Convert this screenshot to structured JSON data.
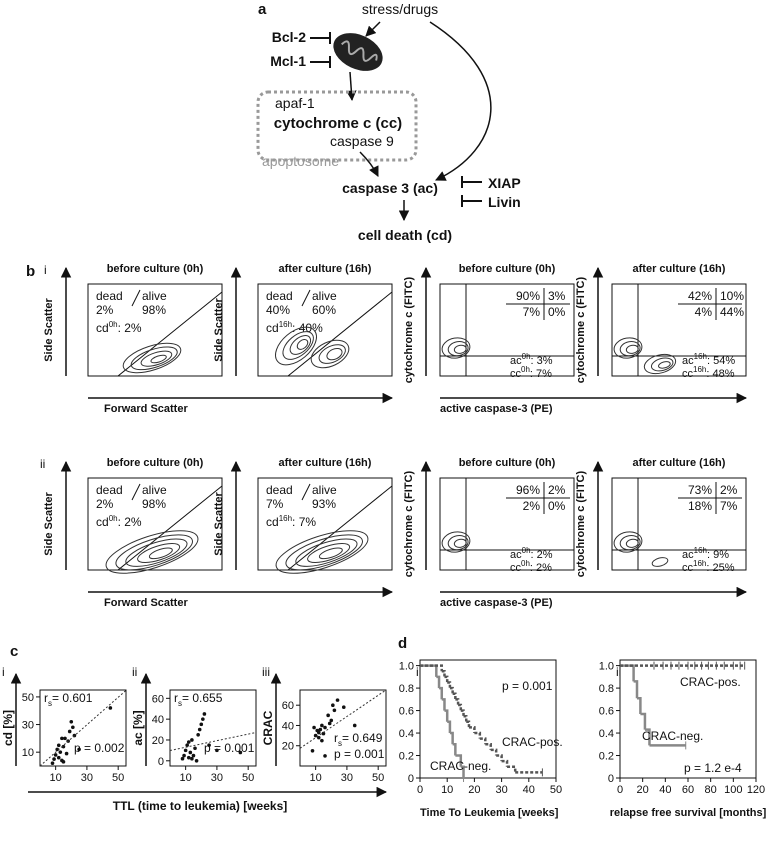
{
  "panel_a": {
    "label": "a",
    "stress": "stress/drugs",
    "bcl2": "Bcl-2",
    "mcl1": "Mcl-1",
    "apaf1": "apaf-1",
    "cytochrome": "cytochrome c (cc)",
    "caspase9": "caspase 9",
    "apoptosome": "apoptosome",
    "caspase3": "caspase 3 (ac)",
    "xiap": "XIAP",
    "livin": "Livin",
    "cell_death": "cell death (cd)"
  },
  "panel_b": {
    "label": "b",
    "dead": "dead",
    "alive": "alive",
    "x_label_scatter": "Forward Scatter",
    "y_label_scatter": "Side Scatter",
    "x_label_fitc": "active caspase-3 (PE)",
    "y_label_fitc": "cytochrome c (FITC)",
    "rows": [
      {
        "label": "i",
        "scatter": [
          {
            "title": "before culture (0h)",
            "dead_pct": "2%",
            "alive_pct": "98%",
            "cd": {
              "base": "cd",
              "sup": "0h",
              "rest": ": 2%"
            }
          },
          {
            "title": "after culture (16h)",
            "dead_pct": "40%",
            "alive_pct": "60%",
            "cd": {
              "base": "cd",
              "sup": "16h",
              "rest": ": 40%"
            }
          }
        ],
        "quad": [
          {
            "title": "before culture (0h)",
            "q": [
              "90%",
              "3%",
              "7%",
              "0%"
            ],
            "ac": {
              "base": "ac",
              "sup": "0h",
              "rest": ": 3%"
            },
            "cc": {
              "base": "cc",
              "sup": "0h",
              "rest": ": 7%"
            }
          },
          {
            "title": "after culture (16h)",
            "q": [
              "42%",
              "10%",
              "4%",
              "44%"
            ],
            "ac": {
              "base": "ac",
              "sup": "16h",
              "rest": ": 54%"
            },
            "cc": {
              "base": "cc",
              "sup": "16h",
              "rest": ": 48%"
            }
          }
        ]
      },
      {
        "label": "ii",
        "scatter": [
          {
            "title": "before culture (0h)",
            "dead_pct": "2%",
            "alive_pct": "98%",
            "cd": {
              "base": "cd",
              "sup": "0h",
              "rest": ": 2%"
            }
          },
          {
            "title": "after culture (16h)",
            "dead_pct": "7%",
            "alive_pct": "93%",
            "cd": {
              "base": "cd",
              "sup": "16h",
              "rest": ": 7%"
            }
          }
        ],
        "quad": [
          {
            "title": "before culture (0h)",
            "q": [
              "96%",
              "2%",
              "2%",
              "0%"
            ],
            "ac": {
              "base": "ac",
              "sup": "0h",
              "rest": ": 2%"
            },
            "cc": {
              "base": "cc",
              "sup": "0h",
              "rest": ": 2%"
            }
          },
          {
            "title": "after culture (16h)",
            "q": [
              "73%",
              "2%",
              "18%",
              "7%"
            ],
            "ac": {
              "base": "ac",
              "sup": "16h",
              "rest": ": 9%"
            },
            "cc": {
              "base": "cc",
              "sup": "16h",
              "rest": ": 25%"
            }
          }
        ]
      }
    ]
  },
  "panel_c": {
    "label": "c",
    "x_label": "TTL (time to leukemia) [weeks]",
    "plots": [
      {
        "label": "i",
        "type": "scatter",
        "y_label": "cd [%]",
        "xlim": [
          0,
          55
        ],
        "xticks": [
          10,
          30,
          50
        ],
        "ylim": [
          0,
          55
        ],
        "yticks": [
          10,
          30,
          50
        ],
        "rs": {
          "base": "r",
          "sub": "s",
          "rest": "= 0.601"
        },
        "p": "p = 0.002",
        "x": [
          8,
          9,
          10,
          11,
          12,
          13,
          14,
          15,
          15,
          16,
          18,
          19,
          20,
          21,
          22,
          25,
          45,
          12,
          17,
          14
        ],
        "y": [
          2,
          5,
          8,
          12,
          6,
          10,
          4,
          14,
          3,
          20,
          18,
          25,
          32,
          28,
          22,
          12,
          42,
          15,
          9,
          20
        ]
      },
      {
        "label": "ii",
        "type": "scatter",
        "y_label": "ac [%]",
        "xlim": [
          0,
          55
        ],
        "xticks": [
          10,
          30,
          50
        ],
        "ylim": [
          -5,
          68
        ],
        "yticks": [
          0,
          20,
          40,
          60
        ],
        "rs": {
          "base": "r",
          "sub": "s",
          "rest": "= 0.655"
        },
        "p": "p = 0.001",
        "x": [
          8,
          9,
          10,
          11,
          12,
          13,
          14,
          15,
          16,
          18,
          19,
          20,
          21,
          22,
          14,
          45,
          25,
          12,
          17,
          30
        ],
        "y": [
          2,
          5,
          10,
          15,
          3,
          8,
          20,
          5,
          12,
          25,
          30,
          35,
          40,
          45,
          2,
          8,
          15,
          18,
          0,
          10
        ]
      },
      {
        "label": "iii",
        "type": "scatter",
        "y_label": "CRAC",
        "xlim": [
          0,
          55
        ],
        "xticks": [
          10,
          30,
          50
        ],
        "ylim": [
          0,
          75
        ],
        "yticks": [
          20,
          40,
          60
        ],
        "rs": {
          "base": "r",
          "sub": "s",
          "rest": "= 0.649"
        },
        "p": "p = 0.001",
        "x": [
          8,
          10,
          11,
          12,
          13,
          14,
          15,
          16,
          18,
          19,
          20,
          21,
          22,
          24,
          12,
          9,
          35,
          16,
          28,
          14
        ],
        "y": [
          15,
          30,
          35,
          33,
          36,
          40,
          32,
          38,
          50,
          42,
          45,
          60,
          55,
          65,
          28,
          38,
          40,
          10,
          58,
          25
        ]
      }
    ]
  },
  "panel_d": {
    "label": "d",
    "plots": [
      {
        "label": "i",
        "type": "survival",
        "x_label": "Time To Leukemia [weeks]",
        "p": "p = 0.001",
        "xlim": [
          0,
          50
        ],
        "xticks": [
          0,
          10,
          20,
          30,
          40,
          50
        ],
        "ylim": [
          0,
          1.05
        ],
        "yticks": [
          0,
          0.2,
          0.4,
          0.6,
          0.8,
          {
            "value": 1,
            "label": "1.0"
          }
        ],
        "series": [
          {
            "name": "CRAC-neg.",
            "color": "#888888",
            "dash": false,
            "x": [
              0,
              6,
              7,
              8,
              9,
              10,
              11,
              12,
              13,
              15,
              16
            ],
            "y": [
              1,
              0.9,
              0.8,
              0.7,
              0.6,
              0.5,
              0.4,
              0.3,
              0.2,
              0.1,
              0
            ],
            "end": 16
          },
          {
            "name": "CRAC-pos.",
            "color": "#555555",
            "dash": true,
            "x": [
              0,
              8,
              9,
              10,
              11,
              12,
              13,
              14,
              15,
              16,
              17,
              18,
              20,
              22,
              24,
              26,
              28,
              30,
              32,
              35
            ],
            "y": [
              1,
              0.95,
              0.9,
              0.85,
              0.8,
              0.75,
              0.7,
              0.65,
              0.6,
              0.55,
              0.5,
              0.45,
              0.4,
              0.35,
              0.3,
              0.25,
              0.2,
              0.15,
              0.1,
              0.05
            ],
            "end": 45
          }
        ]
      },
      {
        "label": "ii",
        "type": "survival",
        "x_label": "relapse free survival [months]",
        "p": "p = 1.2 e-4",
        "xlim": [
          0,
          120
        ],
        "xticks": [
          0,
          20,
          40,
          60,
          80,
          100,
          120
        ],
        "ylim": [
          0,
          1.05
        ],
        "yticks": [
          0,
          0.2,
          0.4,
          0.6,
          0.8,
          {
            "value": 1,
            "label": "1.0"
          }
        ],
        "series": [
          {
            "name": "CRAC-neg.",
            "color": "#888888",
            "dash": false,
            "x": [
              0,
              12,
              15,
              18,
              22,
              26
            ],
            "y": [
              1,
              0.86,
              0.71,
              0.57,
              0.43,
              0.29
            ],
            "end": 58
          },
          {
            "name": "CRAC-pos.",
            "color": "#555555",
            "dash": true,
            "x": [
              0
            ],
            "y": [
              1
            ],
            "end": 110,
            "censored": [
              30,
              38,
              45,
              52,
              60,
              66,
              72,
              78,
              85,
              92,
              100,
              106
            ]
          }
        ]
      }
    ]
  }
}
